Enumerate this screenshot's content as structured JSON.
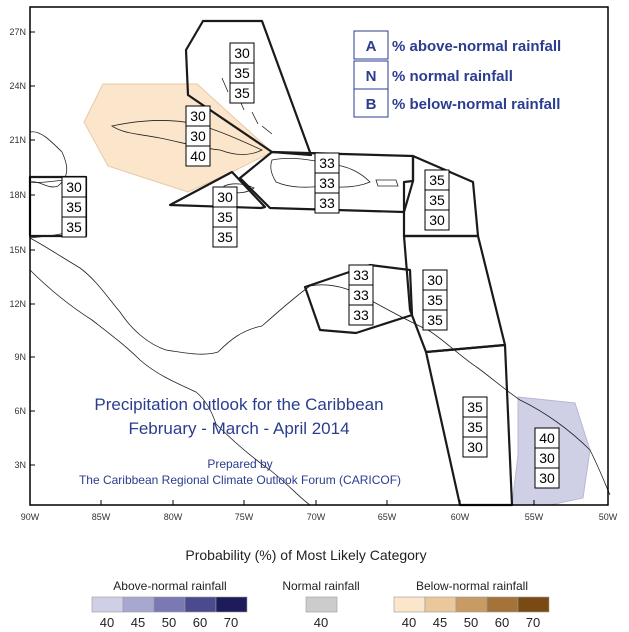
{
  "map": {
    "lat_ticks": [
      "27N",
      "24N",
      "21N",
      "18N",
      "15N",
      "12N",
      "9N",
      "6N",
      "3N"
    ],
    "lon_ticks": [
      "90W",
      "85W",
      "80W",
      "75W",
      "70W",
      "65W",
      "60W",
      "55W",
      "50W"
    ]
  },
  "category_legend": [
    {
      "key": "A",
      "label": "% above-normal rainfall"
    },
    {
      "key": "N",
      "label": "% normal rainfall"
    },
    {
      "key": "B",
      "label": "% below-normal rainfall"
    }
  ],
  "regions": [
    {
      "name": "bahamas",
      "values": [
        "30",
        "35",
        "35"
      ]
    },
    {
      "name": "cuba",
      "values": [
        "30",
        "30",
        "40"
      ]
    },
    {
      "name": "belize",
      "values": [
        "30",
        "35",
        "35"
      ]
    },
    {
      "name": "jamaica",
      "values": [
        "30",
        "35",
        "35"
      ]
    },
    {
      "name": "hispaniola",
      "values": [
        "33",
        "33",
        "33"
      ]
    },
    {
      "name": "leeward-islands",
      "values": [
        "35",
        "35",
        "30"
      ]
    },
    {
      "name": "aruba-curacao",
      "values": [
        "33",
        "33",
        "33"
      ]
    },
    {
      "name": "windward-islands",
      "values": [
        "30",
        "35",
        "35"
      ]
    },
    {
      "name": "guyana",
      "values": [
        "35",
        "35",
        "30"
      ]
    },
    {
      "name": "french-guiana",
      "values": [
        "40",
        "30",
        "30"
      ]
    }
  ],
  "title": {
    "line1": "Precipitation outlook for the Caribbean",
    "line2": "February - March - April 2014",
    "prepared_by": "Prepared by",
    "forum": "The Caribbean Regional Climate Outlook Forum (CARICOF)"
  },
  "probability_scale": {
    "title": "Probability (%) of Most Likely Category",
    "above": {
      "label": "Above-normal rainfall",
      "values": [
        "40",
        "45",
        "50",
        "60",
        "70"
      ],
      "colors": [
        "#cfcfe6",
        "#a8a7cf",
        "#7b79b3",
        "#4b4a8e",
        "#1d1b5a"
      ]
    },
    "normal": {
      "label": "Normal rainfall",
      "values": [
        "40"
      ],
      "colors": [
        "#cccccc"
      ]
    },
    "below": {
      "label": "Below-normal rainfall",
      "values": [
        "40",
        "45",
        "50",
        "60",
        "70"
      ],
      "colors": [
        "#fbe5cb",
        "#ebc79c",
        "#c89b63",
        "#a5733a",
        "#7a4a13"
      ]
    }
  },
  "colors": {
    "above_normal_shade": "#cfcfe6",
    "below_normal_shade": "#fbe5cb",
    "text_blue": "#2b3d8f"
  }
}
